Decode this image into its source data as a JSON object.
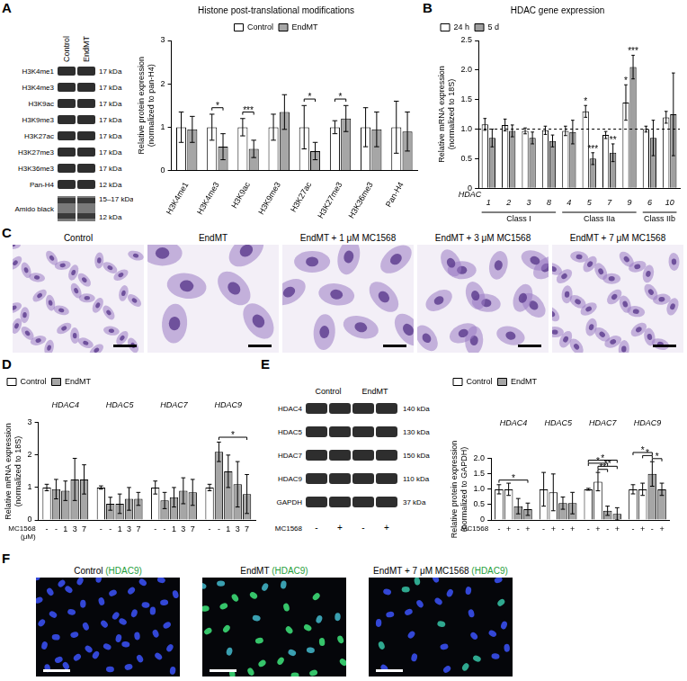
{
  "panels": [
    "A",
    "B",
    "C",
    "D",
    "E",
    "F"
  ],
  "blot_a": {
    "lanes": [
      "Control",
      "EndMT"
    ],
    "rows": [
      {
        "label": "H3K4me1",
        "kda": [
          "17 kDa"
        ]
      },
      {
        "label": "H3K4me3",
        "kda": [
          "17 kDa"
        ]
      },
      {
        "label": "H3K9ac",
        "kda": [
          "17 kDa"
        ]
      },
      {
        "label": "H3K9me3",
        "kda": [
          "17 kDa"
        ]
      },
      {
        "label": "H3K27ac",
        "kda": [
          "17 kDa"
        ]
      },
      {
        "label": "H3K27me3",
        "kda": [
          "17 kDa"
        ]
      },
      {
        "label": "H3K36me3",
        "kda": [
          "17 kDa"
        ]
      },
      {
        "label": "Pan-H4",
        "kda": [
          "12 kDa"
        ]
      },
      {
        "label": "Amido black",
        "kda": [
          "15–17 kDa",
          "12 kDa"
        ]
      }
    ]
  },
  "blot_e": {
    "lane_groups": [
      "Control",
      "EndMT"
    ],
    "rows": [
      {
        "label": "HDAC4",
        "kda": "140 kDa"
      },
      {
        "label": "HDAC5",
        "kda": "130 kDa"
      },
      {
        "label": "HDAC7",
        "kda": "150 kDa"
      },
      {
        "label": "HDAC9",
        "kda": "110 kDa"
      },
      {
        "label": "GAPDH",
        "kda": "37 kDa"
      }
    ],
    "sublabel_title": "MC1568",
    "sublabels": [
      "-",
      "+",
      "-",
      "+"
    ]
  },
  "images_c": [
    "Control",
    "EndMT",
    "EndMT + 1 μM MC1568",
    "EndMT + 3 μM MC1568",
    "EndMT + 7 μM MC1568"
  ],
  "images_f": [
    {
      "label": "Control",
      "stain": "(HDAC9)"
    },
    {
      "label": "EndMT",
      "stain": "(HDAC9)"
    },
    {
      "label": "EndMT + 7 μM MC1568",
      "stain": "(HDAC9)"
    }
  ],
  "chart_data": [
    {
      "type": "bar",
      "title": "Histone post-translational modifications",
      "categories": [
        "H3K4me1",
        "H3K4me3",
        "H3K9ac",
        "H3K9me3",
        "H3K27ac",
        "H3K27me3",
        "H3K36me3",
        "Pan-H4"
      ],
      "y_label": [
        "Relative protein expression",
        "(normalized to pan-H4)"
      ],
      "ylim": [
        0,
        3
      ],
      "yticks": [
        0,
        1,
        2,
        3
      ],
      "grid": false,
      "legend": "top",
      "series": [
        {
          "name": "Control",
          "color": "#ffffff",
          "values": [
            1,
            1,
            1,
            1,
            1,
            1,
            1,
            1
          ],
          "errors": [
            0.35,
            0.3,
            0.2,
            0.3,
            0.5,
            0.15,
            0.45,
            0.6
          ]
        },
        {
          "name": "EndMT",
          "color": "#a6a6a6",
          "values": [
            0.95,
            0.55,
            0.5,
            1.35,
            0.45,
            1.2,
            0.95,
            0.9
          ],
          "errors": [
            0.3,
            0.3,
            0.2,
            0.4,
            0.2,
            0.3,
            0.4,
            0.45
          ]
        }
      ],
      "annotations": [
        {
          "from": [
            1,
            0
          ],
          "to": [
            1,
            1
          ],
          "label": "*"
        },
        {
          "from": [
            2,
            0
          ],
          "to": [
            2,
            1
          ],
          "label": "***"
        },
        {
          "from": [
            4,
            0
          ],
          "to": [
            4,
            1
          ],
          "label": "*"
        },
        {
          "from": [
            5,
            0
          ],
          "to": [
            5,
            1
          ],
          "label": "*"
        }
      ]
    },
    {
      "type": "bar",
      "title": "HDAC gene expression",
      "categories": [
        "1",
        "2",
        "3",
        "8",
        "4",
        "5",
        "7",
        "9",
        "6",
        "10"
      ],
      "x_label": "HDAC",
      "groups": [
        {
          "label": "Class I",
          "from": 0,
          "to": 3
        },
        {
          "label": "Class IIa",
          "from": 4,
          "to": 7
        },
        {
          "label": "Class IIb",
          "from": 8,
          "to": 9
        }
      ],
      "y_label": [
        "Relative mRNA expression",
        "(normalized to 18S)"
      ],
      "ylim": [
        0,
        2.5
      ],
      "yticks": [
        0,
        0.5,
        {
          "value": 1,
          "label": "1.0"
        },
        1.5,
        {
          "value": 2,
          "label": "2.0"
        },
        2.5
      ],
      "reference_line": 1,
      "grid": false,
      "legend": "top-left",
      "series": [
        {
          "name": "24 h",
          "color": "#ffffff",
          "values": [
            1.08,
            1.07,
            0.97,
            0.98,
            0.97,
            1.3,
            0.9,
            1.45,
            1.0,
            1.2
          ],
          "errors": [
            0.1,
            0.1,
            0.05,
            0.07,
            0.08,
            0.1,
            0.06,
            0.3,
            0.05,
            0.1
          ]
        },
        {
          "name": "5 d",
          "color": "#a0a0a0",
          "values": [
            0.85,
            0.97,
            0.85,
            0.8,
            0.95,
            0.5,
            0.6,
            2.05,
            0.85,
            1.25
          ],
          "errors": [
            0.15,
            0.1,
            0.1,
            0.1,
            0.2,
            0.1,
            0.15,
            0.2,
            0.3,
            0.7
          ]
        }
      ],
      "annotations": [
        {
          "from": [
            5,
            0
          ],
          "to": [
            5,
            0
          ],
          "label": "*"
        },
        {
          "from": [
            5,
            1
          ],
          "to": [
            5,
            1
          ],
          "label": "***"
        },
        {
          "from": [
            6,
            1
          ],
          "to": [
            6,
            1
          ],
          "label": "**"
        },
        {
          "from": [
            7,
            0
          ],
          "to": [
            7,
            0
          ],
          "label": "*"
        },
        {
          "from": [
            7,
            1
          ],
          "to": [
            7,
            1
          ],
          "label": "***"
        }
      ]
    },
    {
      "type": "bar",
      "categories": [
        "HDAC4",
        "HDAC5",
        "HDAC7",
        "HDAC9"
      ],
      "y_label": [
        "Relative mRNA expression",
        "(normalized to 18S)"
      ],
      "ylim": [
        0,
        3
      ],
      "yticks": [
        0,
        1,
        2,
        3
      ],
      "grid": false,
      "legend": "top-left",
      "sublabel_title": [
        "MC1568",
        "(μM)"
      ],
      "series": [
        {
          "name": "Control",
          "sublabel": "-",
          "color": "#ffffff",
          "values": [
            1.0,
            1.0,
            1.0,
            1.0
          ],
          "errors": [
            0.1,
            0.05,
            0.2,
            0.1
          ]
        },
        {
          "name": "EndMT",
          "sublabel": "-",
          "color": "#a6a6a6",
          "values": [
            0.95,
            0.5,
            0.6,
            2.1
          ],
          "errors": [
            0.3,
            0.2,
            0.25,
            0.3
          ]
        },
        {
          "name": "EndMT",
          "sublabel": "1",
          "color": "#a6a6a6",
          "values": [
            0.9,
            0.5,
            0.7,
            1.5
          ],
          "errors": [
            0.3,
            0.3,
            0.3,
            0.5
          ]
        },
        {
          "name": "EndMT",
          "sublabel": "3",
          "color": "#a6a6a6",
          "values": [
            1.25,
            0.65,
            0.9,
            1.1
          ],
          "errors": [
            0.65,
            0.35,
            0.4,
            0.7
          ]
        },
        {
          "name": "EndMT",
          "sublabel": "7",
          "color": "#a6a6a6",
          "values": [
            1.25,
            0.65,
            0.85,
            0.8
          ],
          "errors": [
            0.45,
            0.2,
            0.4,
            0.6
          ]
        }
      ],
      "annotations": [
        {
          "from": [
            3,
            1
          ],
          "to": [
            3,
            4
          ],
          "label": "*"
        }
      ]
    },
    {
      "type": "bar",
      "categories": [
        "HDAC4",
        "HDAC5",
        "HDAC7",
        "HDAC9"
      ],
      "y_label": [
        "Relative protein expression",
        "(normalized to GAPDH)"
      ],
      "ylim": [
        0,
        2
      ],
      "yticks": [
        0,
        0.5,
        {
          "value": 1,
          "label": "1.0"
        },
        1.5,
        {
          "value": 2,
          "label": "2.0"
        }
      ],
      "grid": false,
      "legend": "top-left",
      "sublabel_title": [
        "MC1568"
      ],
      "series": [
        {
          "name": "Control",
          "sublabel": "-",
          "color": "#ffffff",
          "values": [
            1.0,
            1.0,
            1.0,
            1.0
          ],
          "errors": [
            0.15,
            0.55,
            0.03,
            0.15
          ]
        },
        {
          "name": "Control",
          "sublabel": "+",
          "color": "#ffffff",
          "values": [
            1.0,
            0.9,
            1.25,
            1.0
          ],
          "errors": [
            0.2,
            0.6,
            0.3,
            0.2
          ]
        },
        {
          "name": "EndMT",
          "sublabel": "-",
          "color": "#a6a6a6",
          "values": [
            0.45,
            0.55,
            0.3,
            1.5
          ],
          "errors": [
            0.25,
            0.2,
            0.15,
            0.4
          ]
        },
        {
          "name": "EndMT",
          "sublabel": "+",
          "color": "#a6a6a6",
          "values": [
            0.35,
            0.55,
            0.2,
            1.0
          ],
          "errors": [
            0.2,
            0.35,
            0.2,
            0.2
          ]
        }
      ],
      "annotations": [
        {
          "from": [
            0,
            0
          ],
          "to": [
            0,
            3
          ],
          "label": "*"
        },
        {
          "from": [
            2,
            1
          ],
          "to": [
            2,
            2
          ],
          "label": "**"
        },
        {
          "from": [
            2,
            1
          ],
          "to": [
            2,
            3
          ],
          "label": "**"
        },
        {
          "from": [
            2,
            0
          ],
          "to": [
            2,
            2
          ],
          "label": "*"
        },
        {
          "from": [
            2,
            0
          ],
          "to": [
            2,
            3
          ],
          "label": "*"
        },
        {
          "from": [
            3,
            2
          ],
          "to": [
            3,
            3
          ],
          "label": "*"
        },
        {
          "from": [
            3,
            1
          ],
          "to": [
            3,
            2
          ],
          "label": "*"
        },
        {
          "from": [
            3,
            0
          ],
          "to": [
            3,
            2
          ],
          "label": "*"
        }
      ]
    }
  ]
}
